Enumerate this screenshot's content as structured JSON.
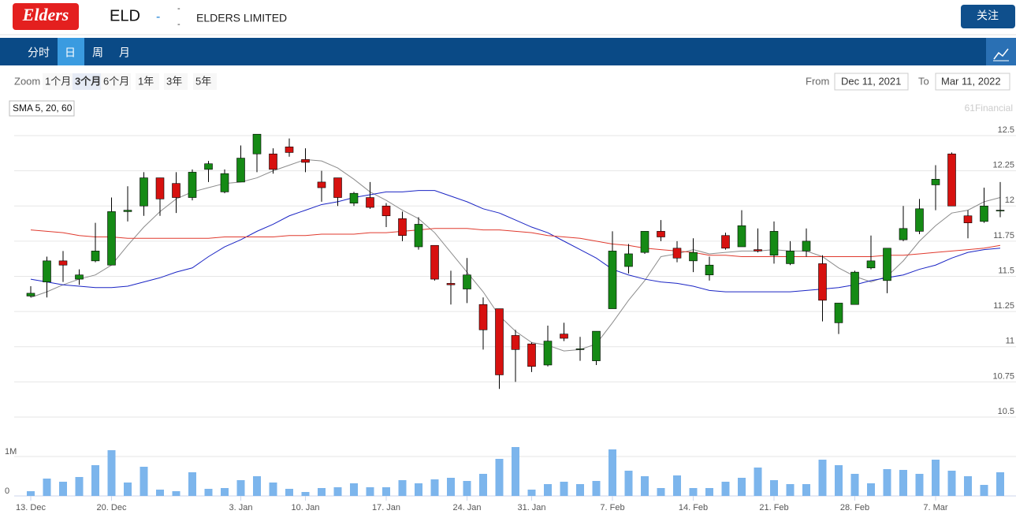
{
  "header": {
    "logo": "Elders",
    "ticker": "ELD",
    "change": "-",
    "stats": [
      "-",
      "-"
    ],
    "company": "ELDERS LIMITED",
    "follow": "关注"
  },
  "nav": {
    "tabs": [
      "分时",
      "日",
      "周",
      "月"
    ],
    "active": 1
  },
  "zoom": {
    "label": "Zoom",
    "buttons": [
      "1个月",
      "3个月",
      "6个月",
      "1年",
      "3年",
      "5年"
    ],
    "active": 1,
    "from_label": "From",
    "from": "Dec 11, 2021",
    "to_label": "To",
    "to": "Mar 11, 2022"
  },
  "chart_data": {
    "type": "candlestick",
    "sma_label": "SMA 5, 20, 60",
    "watermark": "61Financial",
    "categories": [
      "13. Dec",
      null,
      null,
      null,
      null,
      "20. Dec",
      null,
      null,
      null,
      null,
      null,
      null,
      null,
      "3. Jan",
      null,
      null,
      null,
      "10. Jan",
      null,
      null,
      null,
      null,
      "17. Jan",
      null,
      null,
      null,
      null,
      "24. Jan",
      null,
      null,
      null,
      "31. Jan",
      null,
      null,
      null,
      null,
      "7. Feb",
      null,
      null,
      null,
      null,
      "14. Feb",
      null,
      null,
      null,
      null,
      "21. Feb",
      null,
      null,
      null,
      null,
      "28. Feb",
      null,
      null,
      null,
      null,
      "7. Mar",
      null,
      null,
      null,
      null
    ],
    "open": [
      11.36,
      11.46,
      11.61,
      11.48,
      11.61,
      11.58,
      11.96,
      12.0,
      12.2,
      12.16,
      12.06,
      12.26,
      12.1,
      12.17,
      12.37,
      12.37,
      12.42,
      12.33,
      12.17,
      12.2,
      12.02,
      12.06,
      12.0,
      11.91,
      11.71,
      11.72,
      11.45,
      11.41,
      11.3,
      11.27,
      11.08,
      11.02,
      10.87,
      11.09,
      10.98,
      10.9,
      11.27,
      11.57,
      11.67,
      11.82,
      11.7,
      11.61,
      11.51,
      11.79,
      11.71,
      11.69,
      11.65,
      11.59,
      11.68,
      11.59,
      11.17,
      11.3,
      11.56,
      11.47,
      11.76,
      11.82,
      12.15,
      12.37,
      11.93,
      11.89,
      11.965
    ],
    "high": [
      11.43,
      11.64,
      11.68,
      11.55,
      11.88,
      12.06,
      12.14,
      12.24,
      12.2,
      12.24,
      12.26,
      12.32,
      12.26,
      12.43,
      12.51,
      12.41,
      12.48,
      12.41,
      12.25,
      12.2,
      12.1,
      12.17,
      12.02,
      11.96,
      11.92,
      11.72,
      11.54,
      11.63,
      11.35,
      11.27,
      11.12,
      11.03,
      11.15,
      11.17,
      11.07,
      11.11,
      11.82,
      11.73,
      11.82,
      11.9,
      11.75,
      11.77,
      11.64,
      11.81,
      11.97,
      11.84,
      11.89,
      11.75,
      11.84,
      11.65,
      11.31,
      11.54,
      11.79,
      11.7,
      12.0,
      12.05,
      12.29,
      12.38,
      11.97,
      12.13,
      12.17
    ],
    "low": [
      11.35,
      11.35,
      11.46,
      11.44,
      11.6,
      11.58,
      11.89,
      11.93,
      11.93,
      11.95,
      12.04,
      12.17,
      12.09,
      12.17,
      12.24,
      12.23,
      12.35,
      12.24,
      12.03,
      12.0,
      12.0,
      11.98,
      11.85,
      11.75,
      11.69,
      11.47,
      11.3,
      11.31,
      10.98,
      10.7,
      10.75,
      10.82,
      10.86,
      11.04,
      10.9,
      10.87,
      11.27,
      11.52,
      11.66,
      11.75,
      11.6,
      11.53,
      11.47,
      11.69,
      11.71,
      11.67,
      11.59,
      11.58,
      11.64,
      11.18,
      11.09,
      11.3,
      11.55,
      11.38,
      11.75,
      11.8,
      11.97,
      12.0,
      11.77,
      11.88,
      11.92
    ],
    "close": [
      11.38,
      11.61,
      11.58,
      11.51,
      11.68,
      11.96,
      11.97,
      12.2,
      12.05,
      12.06,
      12.24,
      12.3,
      12.23,
      12.34,
      12.51,
      12.26,
      12.38,
      12.31,
      12.13,
      12.06,
      12.09,
      11.99,
      11.93,
      11.79,
      11.87,
      11.48,
      11.44,
      11.51,
      11.12,
      10.8,
      10.98,
      10.86,
      11.04,
      11.06,
      10.985,
      11.11,
      11.68,
      11.66,
      11.82,
      11.78,
      11.63,
      11.67,
      11.58,
      11.7,
      11.86,
      11.68,
      11.82,
      11.68,
      11.75,
      11.33,
      11.31,
      11.53,
      11.61,
      11.7,
      11.84,
      11.98,
      12.19,
      12.0,
      11.88,
      12.0,
      11.97
    ],
    "up_color": "#158a15",
    "down_color": "#d7110f",
    "ylim": [
      10.5,
      12.5
    ],
    "yticks": [
      10.5,
      10.75,
      11,
      11.25,
      11.5,
      11.75,
      12,
      12.25,
      12.5
    ],
    "sma": [
      {
        "color": "#8c8c8c",
        "values": [
          11.35,
          11.39,
          11.44,
          11.48,
          11.51,
          11.58,
          11.72,
          11.85,
          11.96,
          12.05,
          12.1,
          12.13,
          12.16,
          12.17,
          12.2,
          12.25,
          12.29,
          12.33,
          12.32,
          12.27,
          12.19,
          12.1,
          12.04,
          11.97,
          11.91,
          11.81,
          11.67,
          11.53,
          11.39,
          11.22,
          11.11,
          11.03,
          11.01,
          10.97,
          10.98,
          11.02,
          11.17,
          11.33,
          11.47,
          11.64,
          11.66,
          11.69,
          11.66,
          11.67,
          11.68,
          11.68,
          11.69,
          11.68,
          11.68,
          11.64,
          11.56,
          11.5,
          11.46,
          11.5,
          11.61,
          11.75,
          11.86,
          11.95,
          11.97,
          12.03,
          12.06
        ]
      },
      {
        "color": "#1a24c4",
        "values": [
          11.48,
          11.46,
          11.44,
          11.43,
          11.42,
          11.42,
          11.43,
          11.46,
          11.49,
          11.53,
          11.56,
          11.64,
          11.71,
          11.76,
          11.82,
          11.87,
          11.93,
          11.97,
          12.01,
          12.03,
          12.06,
          12.08,
          12.1,
          12.1,
          12.11,
          12.11,
          12.07,
          12.03,
          11.98,
          11.95,
          11.9,
          11.85,
          11.81,
          11.75,
          11.69,
          11.63,
          11.55,
          11.51,
          11.48,
          11.46,
          11.45,
          11.43,
          11.4,
          11.39,
          11.39,
          11.39,
          11.39,
          11.39,
          11.4,
          11.41,
          11.42,
          11.44,
          11.47,
          11.49,
          11.51,
          11.55,
          11.58,
          11.63,
          11.67,
          11.69,
          11.7
        ]
      },
      {
        "color": "#e03a2e",
        "values": [
          11.83,
          11.82,
          11.81,
          11.79,
          11.78,
          11.78,
          11.77,
          11.77,
          11.77,
          11.77,
          11.77,
          11.77,
          11.78,
          11.78,
          11.78,
          11.78,
          11.79,
          11.79,
          11.8,
          11.8,
          11.8,
          11.81,
          11.81,
          11.82,
          11.83,
          11.84,
          11.84,
          11.84,
          11.83,
          11.83,
          11.82,
          11.81,
          11.79,
          11.78,
          11.77,
          11.75,
          11.73,
          11.72,
          11.7,
          11.69,
          11.68,
          11.67,
          11.65,
          11.65,
          11.64,
          11.64,
          11.64,
          11.64,
          11.64,
          11.64,
          11.64,
          11.64,
          11.64,
          11.65,
          11.65,
          11.66,
          11.67,
          11.68,
          11.69,
          11.7,
          11.72
        ]
      }
    ],
    "volume": {
      "color": "#7cb5ec",
      "ylim": [
        0,
        2000000
      ],
      "yticks": [
        0,
        {
          "value": 1000000,
          "label": "1M"
        }
      ],
      "values": [
        120000,
        440000,
        360000,
        480000,
        780000,
        1160000,
        340000,
        740000,
        160000,
        120000,
        600000,
        180000,
        200000,
        400000,
        500000,
        340000,
        180000,
        100000,
        200000,
        220000,
        320000,
        220000,
        220000,
        400000,
        320000,
        420000,
        460000,
        380000,
        560000,
        940000,
        1240000,
        160000,
        300000,
        360000,
        300000,
        380000,
        1180000,
        640000,
        500000,
        200000,
        520000,
        200000,
        200000,
        360000,
        460000,
        720000,
        400000,
        300000,
        300000,
        920000,
        780000,
        560000,
        320000,
        680000,
        660000,
        560000,
        920000,
        640000,
        500000,
        280000,
        600000
      ]
    }
  }
}
